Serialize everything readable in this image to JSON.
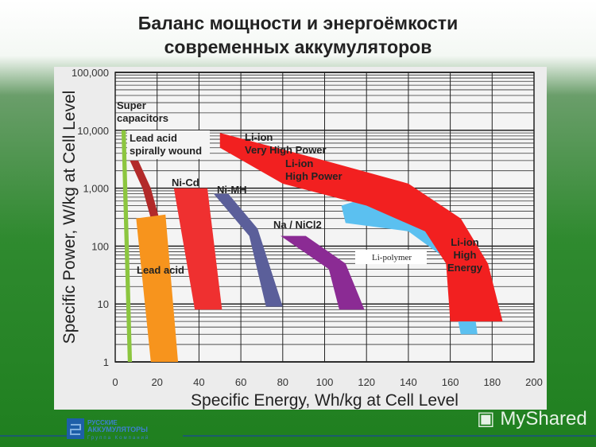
{
  "title_line1": "Баланс мощности и энергоёмкости",
  "title_line2": "современных аккумуляторов",
  "logo": {
    "line1": "РУССКИЕ",
    "line2": "АККУМУЛЯТОРЫ",
    "line3": "Группа Компаний"
  },
  "watermark": "MyShared",
  "chart_data": {
    "type": "area",
    "xlabel": "Specific Energy, Wh/kg at Cell Level",
    "ylabel": "Specific Power, W/kg at Cell Level",
    "xlim": [
      0,
      200
    ],
    "ylim": [
      1,
      100000
    ],
    "yscale": "log",
    "grid": true,
    "xticks": [
      "0",
      "20",
      "40",
      "60",
      "80",
      "100",
      "120",
      "140",
      "160",
      "180",
      "200"
    ],
    "yticks": [
      "1",
      "10",
      "100",
      "1,000",
      "10,000",
      "100,000"
    ],
    "regions": [
      {
        "name": "Super capacitors",
        "label": [
          "Super",
          "capacitors"
        ],
        "color": "#8cc63f",
        "points": [
          [
            3,
            10000
          ],
          [
            5,
            10000
          ],
          [
            8,
            1
          ],
          [
            6,
            1
          ]
        ]
      },
      {
        "name": "Lead acid spirally wound",
        "label": [
          "Lead acid",
          "spirally wound"
        ],
        "color": "#b22a2a",
        "points": [
          [
            7,
            3000
          ],
          [
            11,
            3000
          ],
          [
            17,
            1000
          ],
          [
            21,
            300
          ],
          [
            22,
            60
          ],
          [
            18,
            60
          ],
          [
            17,
            300
          ],
          [
            13,
            1000
          ]
        ]
      },
      {
        "name": "Lead acid",
        "label": [
          "Lead acid"
        ],
        "color": "#f7941d",
        "points": [
          [
            10,
            300
          ],
          [
            24,
            350
          ],
          [
            30,
            1
          ],
          [
            17,
            1
          ]
        ]
      },
      {
        "name": "Ni-Cd",
        "label": [
          "Ni-Cd"
        ],
        "color": "#ef3030",
        "points": [
          [
            28,
            1000
          ],
          [
            44,
            1000
          ],
          [
            51,
            8
          ],
          [
            38,
            8
          ]
        ]
      },
      {
        "name": "Ni-MH",
        "label": [
          "Ni-MH"
        ],
        "color": "#5b5f9a",
        "points": [
          [
            47,
            800
          ],
          [
            54,
            800
          ],
          [
            68,
            200
          ],
          [
            80,
            9
          ],
          [
            72,
            9
          ],
          [
            64,
            150
          ]
        ]
      },
      {
        "name": "Na / NiCl2",
        "label": [
          "Na / NiCl2"
        ],
        "color": "#8b2b94",
        "points": [
          [
            79,
            150
          ],
          [
            91,
            150
          ],
          [
            110,
            50
          ],
          [
            119,
            8
          ],
          [
            107,
            8
          ],
          [
            102,
            40
          ]
        ]
      },
      {
        "name": "Li-polymer",
        "label": [
          "Li-polymer"
        ],
        "color": "#5bc0f0",
        "points": [
          [
            108,
            500
          ],
          [
            118,
            650
          ],
          [
            150,
            250
          ],
          [
            168,
            60
          ],
          [
            173,
            3
          ],
          [
            165,
            3
          ],
          [
            158,
            60
          ],
          [
            140,
            180
          ],
          [
            110,
            250
          ]
        ]
      },
      {
        "name": "Li-ion",
        "label": [
          "Li-ion",
          "Very High Power"
        ],
        "color": "#f22020",
        "points": [
          [
            50,
            9000
          ],
          [
            100,
            3000
          ],
          [
            140,
            1200
          ],
          [
            165,
            300
          ],
          [
            178,
            50
          ],
          [
            185,
            5
          ],
          [
            160,
            5
          ],
          [
            158,
            50
          ],
          [
            148,
            180
          ],
          [
            120,
            500
          ],
          [
            80,
            1200
          ],
          [
            50,
            5000
          ]
        ]
      }
    ],
    "annotations": [
      {
        "text": [
          "Li-ion",
          "High Power"
        ]
      },
      {
        "text": [
          "Li-ion",
          "High",
          "Energy"
        ]
      }
    ]
  }
}
